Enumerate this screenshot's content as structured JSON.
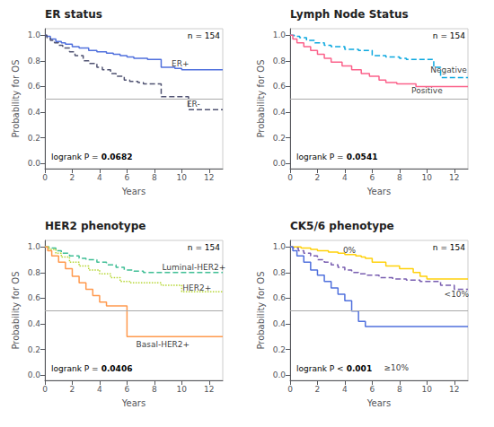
{
  "chart_data": [
    {
      "type": "step",
      "title": "ER status",
      "x_label": "Years",
      "y_label": "Probability for OS",
      "xlim": [
        0,
        13
      ],
      "ylim": [
        -0.04,
        1.05
      ],
      "xticks": [
        0,
        2,
        4,
        6,
        8,
        10,
        12
      ],
      "yticks": [
        {
          "value": 0.0,
          "label": "0.0"
        },
        0.2,
        0.4,
        0.6,
        0.8,
        {
          "value": 1.0,
          "label": "1.0"
        }
      ],
      "grid": false,
      "hline": {
        "y": 0.5,
        "color": "#aaaaaa"
      },
      "n_label": "n = 154",
      "p_value": {
        "text": "logrank P =",
        "bold": "0.0682"
      },
      "series": [
        {
          "name": "ER+",
          "line_style": "solid",
          "label_x": 9.2,
          "label_y": 0.78,
          "x": [
            0,
            0.1,
            0.4,
            0.8,
            1.2,
            1.5,
            2.0,
            2.5,
            3.2,
            3.8,
            4.5,
            5.0,
            5.5,
            6.0,
            6.5,
            7.0,
            7.5,
            8.0,
            8.5,
            9.0,
            9.5,
            10.0,
            11.0,
            12.0,
            13.0
          ],
          "values": [
            1.0,
            0.99,
            0.97,
            0.95,
            0.94,
            0.93,
            0.91,
            0.9,
            0.88,
            0.87,
            0.86,
            0.85,
            0.84,
            0.83,
            0.82,
            0.82,
            0.81,
            0.81,
            0.75,
            0.75,
            0.74,
            0.73,
            0.73,
            0.73,
            0.73
          ]
        },
        {
          "name": "ER-",
          "line_style": "dashed",
          "label_x": 10.3,
          "label_y": 0.46,
          "x": [
            0,
            0.15,
            0.4,
            0.7,
            1.0,
            1.3,
            1.8,
            2.2,
            2.8,
            3.2,
            3.8,
            4.2,
            4.8,
            5.2,
            5.8,
            6.2,
            6.8,
            7.2,
            8.0,
            8.5,
            9.0,
            10.0,
            10.5,
            11.0,
            12.0,
            13.0
          ],
          "values": [
            1.0,
            0.98,
            0.96,
            0.94,
            0.92,
            0.9,
            0.87,
            0.84,
            0.8,
            0.78,
            0.75,
            0.73,
            0.7,
            0.68,
            0.65,
            0.64,
            0.63,
            0.62,
            0.62,
            0.52,
            0.52,
            0.52,
            0.42,
            0.42,
            0.42,
            0.42
          ]
        }
      ]
    },
    {
      "type": "step",
      "title": "Lymph Node Status",
      "x_label": "Years",
      "y_label": "Probability for OS",
      "xlim": [
        0,
        13
      ],
      "ylim": [
        -0.04,
        1.05
      ],
      "xticks": [
        0,
        2,
        4,
        6,
        8,
        10,
        12
      ],
      "yticks": [
        {
          "value": 0.0,
          "label": "0.0"
        },
        0.2,
        0.4,
        0.6,
        0.8,
        {
          "value": 1.0,
          "label": "1.0"
        }
      ],
      "grid": false,
      "hline": {
        "y": 0.5,
        "color": "#aaaaaa"
      },
      "n_label": "n = 154",
      "p_value": {
        "text": "logrank P =",
        "bold": "0.0541"
      },
      "series": [
        {
          "name": "Negative",
          "line_style": "dashed",
          "label_x": 10.2,
          "label_y": 0.73,
          "x": [
            0,
            0.3,
            0.7,
            1.2,
            1.8,
            2.5,
            3.0,
            4.0,
            5.0,
            6.0,
            7.0,
            8.0,
            8.5,
            9.0,
            10.0,
            10.5,
            11.0,
            12.0,
            13.0
          ],
          "values": [
            1.0,
            0.99,
            0.98,
            0.96,
            0.94,
            0.92,
            0.91,
            0.89,
            0.88,
            0.84,
            0.83,
            0.82,
            0.81,
            0.81,
            0.81,
            0.75,
            0.67,
            0.67,
            0.67
          ]
        },
        {
          "name": "Positive",
          "line_style": "solid",
          "label_x": 8.8,
          "label_y": 0.57,
          "x": [
            0,
            0.2,
            0.5,
            1.0,
            1.5,
            2.0,
            2.5,
            3.0,
            3.8,
            4.5,
            5.2,
            5.8,
            6.5,
            7.0,
            7.8,
            8.5,
            9.2,
            10.0,
            11.0,
            12.0,
            13.0
          ],
          "values": [
            1.0,
            0.97,
            0.94,
            0.91,
            0.88,
            0.85,
            0.82,
            0.79,
            0.76,
            0.73,
            0.7,
            0.68,
            0.65,
            0.63,
            0.62,
            0.62,
            0.6,
            0.6,
            0.6,
            0.6,
            0.6
          ]
        }
      ]
    },
    {
      "type": "step",
      "title": "HER2 phenotype",
      "x_label": "Years",
      "y_label": "Probability for OS",
      "xlim": [
        0,
        13
      ],
      "ylim": [
        -0.04,
        1.05
      ],
      "xticks": [
        0,
        2,
        4,
        6,
        8,
        10,
        12
      ],
      "yticks": [
        {
          "value": 0.0,
          "label": "0.0"
        },
        0.2,
        0.4,
        0.6,
        0.8,
        {
          "value": 1.0,
          "label": "1.0"
        }
      ],
      "grid": false,
      "hline": {
        "y": 0.5,
        "color": "#aaaaaa"
      },
      "n_label": "n = 154",
      "p_value": {
        "text": "logrank P =",
        "bold": "0.0406"
      },
      "series": [
        {
          "name": "Luminal-HER2+",
          "line_style": "dashed",
          "label_x": 8.5,
          "label_y": 0.84,
          "x": [
            0,
            0.3,
            0.8,
            1.2,
            1.8,
            2.5,
            3.0,
            3.8,
            4.5,
            5.2,
            5.8,
            6.5,
            7.2,
            8.0,
            9.0,
            10.0,
            11.0,
            12.0,
            13.0
          ],
          "values": [
            1.0,
            0.99,
            0.97,
            0.95,
            0.93,
            0.91,
            0.9,
            0.88,
            0.86,
            0.84,
            0.82,
            0.81,
            0.8,
            0.8,
            0.8,
            0.8,
            0.8,
            0.8,
            0.8
          ]
        },
        {
          "name": "HER2+",
          "line_style": "dotted",
          "label_x": 10.0,
          "label_y": 0.68,
          "x": [
            0,
            0.3,
            0.8,
            1.2,
            1.8,
            2.5,
            3.2,
            4.0,
            4.8,
            5.5,
            6.2,
            7.0,
            7.8,
            8.5,
            9.2,
            10.0,
            11.0,
            12.0,
            13.0
          ],
          "values": [
            1.0,
            0.98,
            0.95,
            0.92,
            0.88,
            0.85,
            0.82,
            0.79,
            0.76,
            0.73,
            0.72,
            0.72,
            0.72,
            0.7,
            0.7,
            0.65,
            0.65,
            0.65,
            0.65
          ]
        },
        {
          "name": "Basal-HER2+",
          "line_style": "solid",
          "label_x": 6.6,
          "label_y": 0.24,
          "x": [
            0,
            0.2,
            0.5,
            1.0,
            1.5,
            2.0,
            2.5,
            3.0,
            3.5,
            4.0,
            4.5,
            5.0,
            5.5,
            6.0,
            6.5,
            13.0
          ],
          "values": [
            1.0,
            0.97,
            0.93,
            0.88,
            0.83,
            0.77,
            0.72,
            0.67,
            0.62,
            0.57,
            0.54,
            0.54,
            0.54,
            0.3,
            0.3,
            0.3
          ]
        }
      ]
    },
    {
      "type": "step",
      "title": "CK5/6 phenotype",
      "x_label": "Years",
      "y_label": "Probability for OS",
      "xlim": [
        0,
        13
      ],
      "ylim": [
        -0.04,
        1.05
      ],
      "xticks": [
        0,
        2,
        4,
        6,
        8,
        10,
        12
      ],
      "yticks": [
        {
          "value": 0.0,
          "label": "0.0"
        },
        0.2,
        0.4,
        0.6,
        0.8,
        {
          "value": 1.0,
          "label": "1.0"
        }
      ],
      "grid": false,
      "hline": {
        "y": 0.5,
        "color": "#aaaaaa"
      },
      "n_label": "n = 154",
      "p_value": {
        "text": "logrank P <",
        "bold": "0.001"
      },
      "series": [
        {
          "name": "0%",
          "line_style": "solid",
          "label_x": 3.8,
          "label_y": 0.97,
          "x": [
            0,
            0.3,
            0.8,
            1.5,
            2.0,
            2.8,
            3.5,
            4.0,
            4.8,
            5.2,
            5.5,
            6.0,
            7.0,
            8.0,
            9.0,
            9.5,
            10.0,
            11.0,
            12.0,
            13.0
          ],
          "values": [
            1.0,
            1.0,
            0.99,
            0.98,
            0.97,
            0.96,
            0.95,
            0.94,
            0.93,
            0.92,
            0.91,
            0.88,
            0.85,
            0.83,
            0.8,
            0.77,
            0.75,
            0.75,
            0.75,
            0.75
          ]
        },
        {
          "name": "<10%",
          "line_style": "dashed",
          "label_x": 11.2,
          "label_y": 0.63,
          "x": [
            0,
            0.2,
            0.6,
            1.0,
            1.5,
            2.0,
            2.5,
            3.0,
            3.5,
            4.0,
            4.5,
            5.0,
            5.5,
            6.5,
            7.5,
            8.5,
            9.5,
            10.5,
            11.0,
            12.0,
            13.0
          ],
          "values": [
            1.0,
            0.99,
            0.97,
            0.95,
            0.93,
            0.9,
            0.88,
            0.86,
            0.84,
            0.82,
            0.8,
            0.79,
            0.78,
            0.76,
            0.75,
            0.74,
            0.73,
            0.73,
            0.7,
            0.67,
            0.67
          ]
        },
        {
          "name": "≥10%",
          "line_style": "solid",
          "label_x": 6.8,
          "label_y": 0.06,
          "x": [
            0,
            0.2,
            0.5,
            1.0,
            1.5,
            2.0,
            2.5,
            3.0,
            3.5,
            4.0,
            4.5,
            5.0,
            5.5,
            6.0,
            6.5,
            7.0,
            8.0,
            9.0,
            10.0,
            13.0
          ],
          "values": [
            1.0,
            0.97,
            0.93,
            0.88,
            0.82,
            0.78,
            0.73,
            0.68,
            0.63,
            0.58,
            0.5,
            0.42,
            0.38,
            0.38,
            0.38,
            0.38,
            0.38,
            0.38,
            0.38,
            0.38
          ]
        }
      ]
    }
  ]
}
